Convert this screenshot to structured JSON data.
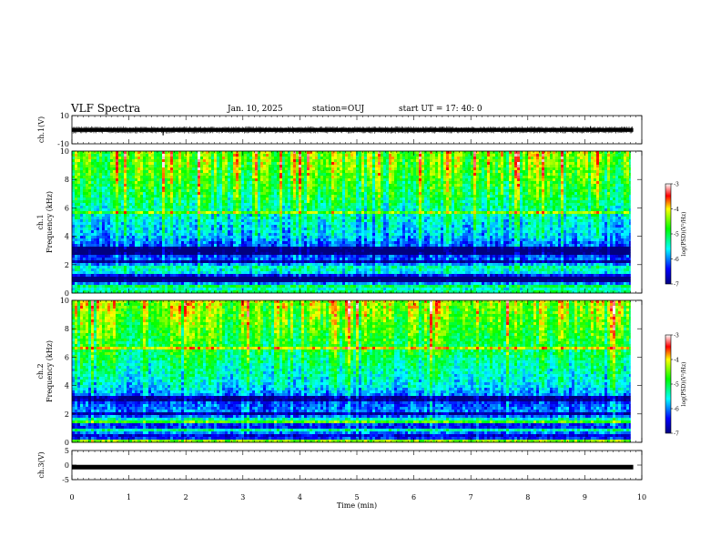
{
  "header": {
    "title": "VLF Spectra",
    "date": "Jan. 10, 2025",
    "station": "station=OUJ",
    "start": "start UT = 17: 40: 0"
  },
  "chart_data": [
    {
      "type": "line",
      "ylabel": "ch.1(V)",
      "ylim": [
        -10,
        10
      ],
      "yticks": [
        "10",
        "-10"
      ],
      "xlim": [
        0,
        10
      ],
      "series_color": "#000000",
      "baseline": 0,
      "range_min": -1.5,
      "range_max": 1.2,
      "spikes": [
        [
          1.6,
          -4
        ],
        [
          6.5,
          2.0
        ],
        [
          9.1,
          2.5
        ],
        [
          9.7,
          2.0
        ]
      ]
    },
    {
      "type": "heatmap",
      "ylabel": "ch.1",
      "ylabel2": "Frequency (kHz)",
      "xlim": [
        0,
        9.8
      ],
      "ylim": [
        0,
        10
      ],
      "yticks": [
        "0",
        "2",
        "4",
        "6",
        "8",
        "10"
      ],
      "colorbar": {
        "label": "log(PSD)(V²/Hz)",
        "range": [
          -7,
          -3
        ],
        "ticks": [
          "-3",
          "-4",
          "-5",
          "-6",
          "-7"
        ]
      },
      "dark_bands_khz": [
        [
          0.6,
          1.1
        ],
        [
          2.0,
          2.3
        ],
        [
          2.7,
          3.4
        ]
      ],
      "bright_bands_khz": [
        [
          1.3,
          1.9
        ],
        [
          0.3,
          0.5
        ]
      ],
      "level_profile": [
        {
          "khz": 0,
          "level": -5.0
        },
        {
          "khz": 1,
          "level": -6.6
        },
        {
          "khz": 2,
          "level": -6.0
        },
        {
          "khz": 3,
          "level": -6.5
        },
        {
          "khz": 4,
          "level": -5.8
        },
        {
          "khz": 5,
          "level": -5.6
        },
        {
          "khz": 6,
          "level": -5.3
        },
        {
          "khz": 7,
          "level": -5.0
        },
        {
          "khz": 8,
          "level": -4.8
        },
        {
          "khz": 9,
          "level": -4.6
        },
        {
          "khz": 10,
          "level": -4.5
        }
      ]
    },
    {
      "type": "heatmap",
      "ylabel": "ch.2",
      "ylabel2": "Frequency (kHz)",
      "xlim": [
        0,
        9.8
      ],
      "ylim": [
        0,
        10
      ],
      "yticks": [
        "0",
        "2",
        "4",
        "6",
        "8",
        "10"
      ],
      "colorbar": {
        "label": "log(PSD)(V²/Hz)",
        "range": [
          -7,
          -3
        ],
        "ticks": [
          "-3",
          "-4",
          "-5",
          "-6",
          "-7"
        ]
      },
      "dark_bands_khz": [
        [
          0.2,
          0.5
        ],
        [
          1.9,
          2.2
        ],
        [
          2.6,
          3.2
        ]
      ],
      "bright_bands_khz": [
        [
          1.3,
          1.8
        ],
        [
          2.6,
          2.9
        ]
      ],
      "level_profile": [
        {
          "khz": 0,
          "level": -5.2
        },
        {
          "khz": 1,
          "level": -6.4
        },
        {
          "khz": 2,
          "level": -6.0
        },
        {
          "khz": 3,
          "level": -6.2
        },
        {
          "khz": 4,
          "level": -5.6
        },
        {
          "khz": 5,
          "level": -5.4
        },
        {
          "khz": 6,
          "level": -5.1
        },
        {
          "khz": 7,
          "level": -4.9
        },
        {
          "khz": 8,
          "level": -4.7
        },
        {
          "khz": 9,
          "level": -4.5
        },
        {
          "khz": 10,
          "level": -4.3
        }
      ]
    },
    {
      "type": "line",
      "ylabel": "ch.3(V)",
      "ylim": [
        -5,
        5
      ],
      "yticks": [
        "5",
        "0",
        "-5"
      ],
      "xlim": [
        0,
        10
      ],
      "series_color": "#000000",
      "baseline": -0.7,
      "range_min": -1.0,
      "range_max": -0.4,
      "spikes": []
    }
  ],
  "time_axis": {
    "label": "Time (min)",
    "ticks": [
      "0",
      "1",
      "2",
      "3",
      "4",
      "5",
      "6",
      "7",
      "8",
      "9",
      "10"
    ]
  }
}
